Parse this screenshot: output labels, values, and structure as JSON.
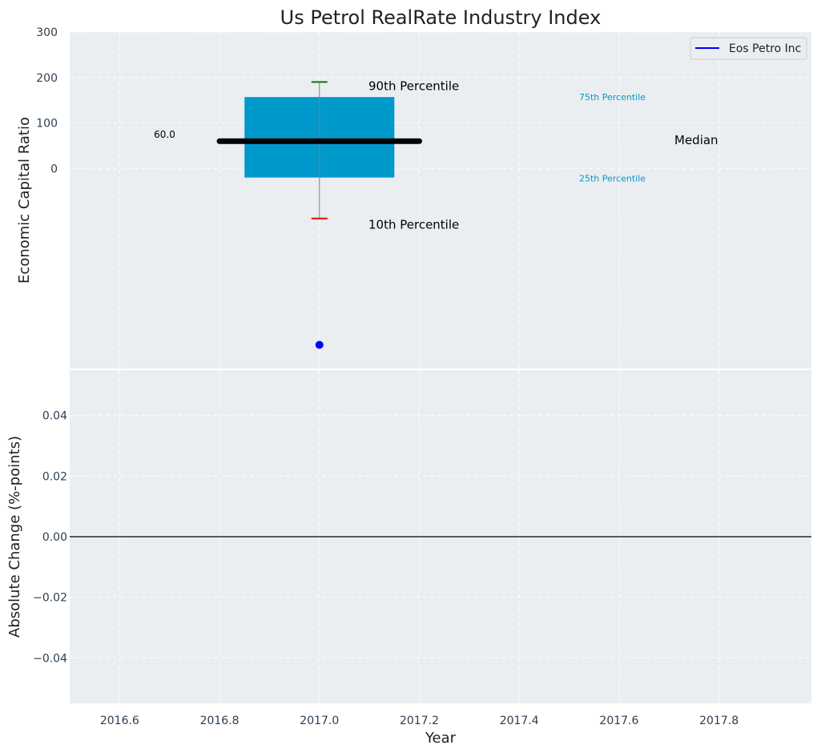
{
  "chart_data": [
    {
      "type": "box",
      "title": "Us Petrol RealRate Industry Index",
      "ylabel": "Economic Capital Ratio",
      "x": 2017.0,
      "box": {
        "p10": -110,
        "p25": -20,
        "median": 60,
        "p75": 157,
        "p90": 190
      },
      "median_label": "60.0",
      "company_point": {
        "x": 2017.0,
        "y": -388
      },
      "yticks": [
        0,
        100,
        200,
        300
      ],
      "ylim": [
        -440,
        300
      ],
      "annotations": {
        "p90": "90th Percentile",
        "p75": "75th Percentile",
        "median": "Median",
        "p25": "25th Percentile",
        "p10": "10th Percentile"
      },
      "legend": [
        {
          "name": "Eos Petro Inc",
          "color": "#0000ff"
        }
      ],
      "legend_position": "top-right",
      "grid": true
    },
    {
      "type": "line",
      "ylabel": "Absolute Change (%-points)",
      "xlabel": "Year",
      "xlim": [
        2016.5,
        17.985
      ],
      "ylim": [
        -0.055,
        0.055
      ],
      "xticks": [
        2016.6,
        2016.8,
        2017.0,
        2017.2,
        2017.4,
        2017.6,
        2017.8
      ],
      "xtick_labels": [
        "2016.6",
        "2016.8",
        "2017.0",
        "2017.2",
        "2017.4",
        "2017.6",
        "2017.8"
      ],
      "yticks": [
        0.04,
        0.02,
        0.0,
        -0.02,
        -0.04
      ],
      "ytick_labels": [
        "0.04",
        "0.02",
        "0.00",
        "−0.02",
        "−0.04"
      ],
      "reference_line": 0.0,
      "series": [],
      "grid": true
    }
  ],
  "colors": {
    "plot_bg": "#eaeef0",
    "grid": "#ffffff",
    "box": "#0099cc",
    "median": "#000000",
    "whisker": "#808080",
    "cap_top": "#008000",
    "cap_bottom": "#ff0000",
    "company_point": "#0000ff",
    "annotation_accent": "#0099cc"
  }
}
